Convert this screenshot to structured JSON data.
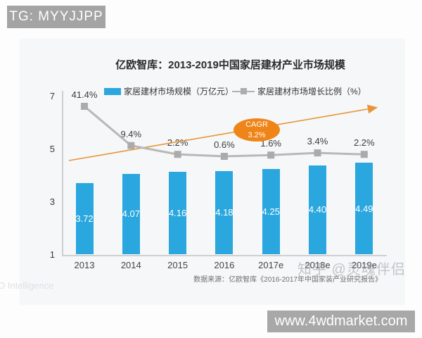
{
  "badge": {
    "text": "TG: MYYJJPP"
  },
  "chart": {
    "title": "亿欧智库：2013-2019中国家居建材产业市场规模",
    "legend": [
      {
        "label": "家居建材市场规模（万亿元）",
        "marker": "bar-swatch",
        "color": "#2aa7de"
      },
      {
        "label": "家居建材市场增长比例（%）",
        "marker": "line-swatch",
        "color": "#b3b3b3"
      }
    ],
    "source": "数据来源：亿欧智库《2016-2017年中国家装产业研究报告》",
    "annotation": {
      "label": "CAGR",
      "value": "3.2%"
    }
  },
  "chart_data": {
    "type": "bar",
    "categories": [
      "2013",
      "2014",
      "2015",
      "2016",
      "2017e",
      "2018e",
      "2019e"
    ],
    "series": [
      {
        "name": "家居建材市场规模（万亿元）",
        "type": "bar",
        "color": "#2aa7de",
        "values": [
          3.72,
          4.07,
          4.16,
          4.18,
          4.25,
          4.4,
          4.49
        ]
      },
      {
        "name": "家居建材市场增长比例（%）",
        "type": "line",
        "color": "#b3b3b3",
        "values": [
          41.4,
          9.4,
          2.2,
          0.6,
          1.6,
          3.4,
          2.2
        ]
      }
    ],
    "title": "亿欧智库：2013-2019中国家居建材产业市场规模",
    "xlabel": "",
    "ylabel": "",
    "ylim": [
      1,
      7
    ],
    "yticks": [
      7,
      5,
      3,
      1
    ],
    "grid": false,
    "legend_position": "top",
    "annotations": [
      "CAGR 3.2%",
      "trend-arrow-up-orange"
    ]
  },
  "watermarks": {
    "zhihu": "知乎 @灵魂伴侣",
    "corner": "O Intelligence"
  },
  "footer": {
    "url": "www.4wdmarket.com"
  },
  "colors": {
    "bar_blue": "#2aa7de",
    "line_gray": "#b3b3b3",
    "accent_orange": "#ef8519",
    "badge_gray": "#a4a4a4",
    "footer_gray": "#a8a8a8"
  }
}
